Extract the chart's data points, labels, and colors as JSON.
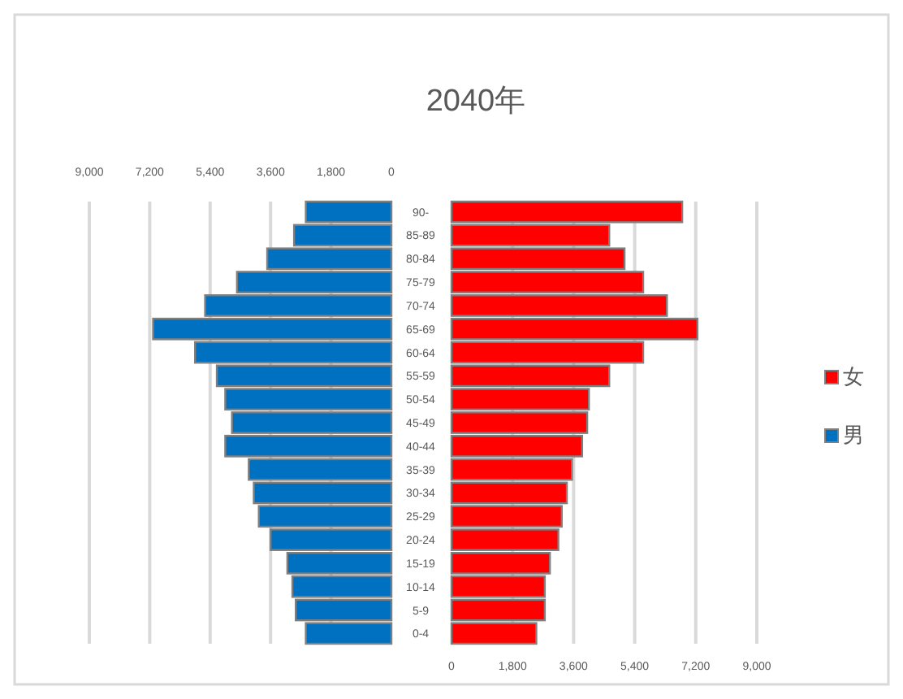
{
  "chart_data": [
    {
      "type": "bar",
      "orientation": "horizontal",
      "categories": [
        null,
        null,
        null,
        null,
        null,
        null,
        null,
        null,
        null,
        null,
        null,
        null,
        null,
        null,
        null,
        null,
        null,
        null,
        null
      ],
      "series": [
        {
          "name": "男",
          "color": "#0070c0",
          "values": [
            2550,
            2900,
            3700,
            4600,
            5550,
            7100,
            5850,
            5200,
            4950,
            4750,
            4950,
            4250,
            4100,
            3950,
            3600,
            3100,
            2950,
            2850,
            2550
          ]
        }
      ],
      "xlim": [
        9000,
        0
      ],
      "xticks": [
        {
          "value": 9000,
          "label": "9,000"
        },
        {
          "value": 7200,
          "label": "7,200"
        },
        {
          "value": 5400,
          "label": "5,400"
        },
        {
          "value": 3600,
          "label": "3,600"
        },
        {
          "value": 1800,
          "label": "1,800"
        },
        0
      ],
      "grid": "x",
      "legend": "right",
      "tick_labels": "x"
    },
    {
      "type": "bar",
      "orientation": "horizontal",
      "title": "2040年",
      "categories": [
        "90-",
        "85-89",
        "80-84",
        "75-79",
        "70-74",
        "65-69",
        "60-64",
        "55-59",
        "50-54",
        "45-49",
        "40-44",
        "35-39",
        "30-34",
        "25-29",
        "20-24",
        "15-19",
        "10-14",
        "5-9",
        "0-4"
      ],
      "series": [
        {
          "name": "女",
          "color": "#ff0000",
          "values": [
            6800,
            4650,
            5100,
            5650,
            6350,
            7250,
            5650,
            4650,
            4050,
            4000,
            3850,
            3550,
            3400,
            3250,
            3150,
            2900,
            2750,
            2750,
            2500
          ]
        }
      ],
      "xlim": [
        0,
        9000
      ],
      "xticks": [
        0,
        {
          "value": 1800,
          "label": "1,800"
        },
        {
          "value": 3600,
          "label": "3,600"
        },
        {
          "value": 5400,
          "label": "5,400"
        },
        {
          "value": 7200,
          "label": "7,200"
        },
        {
          "value": 9000,
          "label": "9,000"
        }
      ],
      "grid": "x",
      "legend": "right"
    }
  ]
}
